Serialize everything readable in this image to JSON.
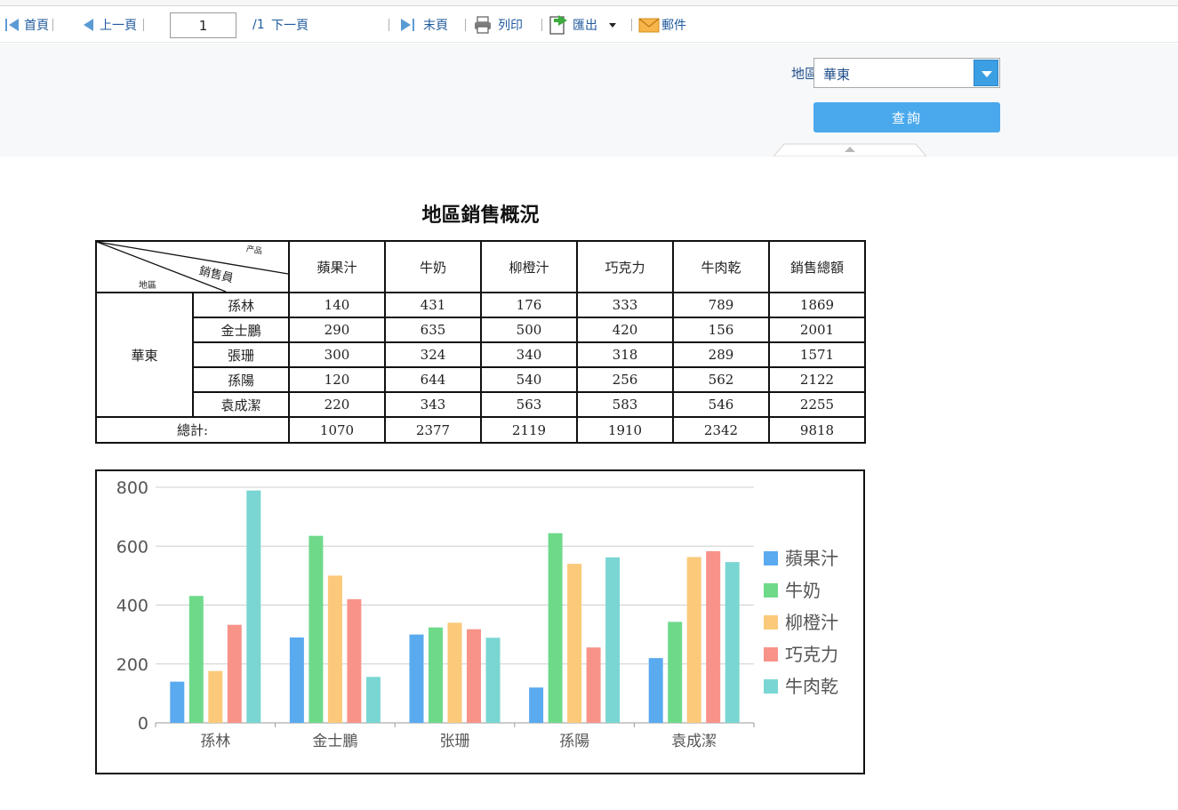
{
  "toolbar": {
    "first": "首頁",
    "prev": "上一頁",
    "page_value": "1",
    "page_total": "/1",
    "next": "下一頁",
    "last": "末頁",
    "print": "列印",
    "export": "匯出",
    "mail": "郵件"
  },
  "params": {
    "region_label": "地區:",
    "region_value": "華東",
    "query_label": "查詢"
  },
  "report": {
    "title": "地區銷售概況",
    "corner": {
      "top": "产品",
      "mid": "銷售員",
      "bottom": "地區"
    },
    "columns": [
      "蘋果汁",
      "牛奶",
      "柳橙汁",
      "巧克力",
      "牛肉乾",
      "銷售總額"
    ],
    "region": "華東",
    "rows": [
      {
        "name": "孫林",
        "values": [
          "140",
          "431",
          "176",
          "333",
          "789",
          "1869"
        ]
      },
      {
        "name": "金士鵬",
        "values": [
          "290",
          "635",
          "500",
          "420",
          "156",
          "2001"
        ]
      },
      {
        "name": "張珊",
        "values": [
          "300",
          "324",
          "340",
          "318",
          "289",
          "1571"
        ]
      },
      {
        "name": "孫陽",
        "values": [
          "120",
          "644",
          "540",
          "256",
          "562",
          "2122"
        ]
      },
      {
        "name": "袁成潔",
        "values": [
          "220",
          "343",
          "563",
          "583",
          "546",
          "2255"
        ]
      }
    ],
    "total_label": "總計:",
    "totals": [
      "1070",
      "2377",
      "2119",
      "1910",
      "2342",
      "9818"
    ]
  },
  "chart_data": {
    "type": "bar",
    "categories": [
      "孫林",
      "金士鵬",
      "张珊",
      "孫陽",
      "袁成潔"
    ],
    "series": [
      {
        "name": "蘋果汁",
        "color": "#5aaaf0",
        "values": [
          140,
          290,
          300,
          120,
          220
        ]
      },
      {
        "name": "牛奶",
        "color": "#6fd98a",
        "values": [
          431,
          635,
          324,
          644,
          343
        ]
      },
      {
        "name": "柳橙汁",
        "color": "#fbc97a",
        "values": [
          176,
          500,
          340,
          540,
          563
        ]
      },
      {
        "name": "巧克力",
        "color": "#f8938a",
        "values": [
          333,
          420,
          318,
          256,
          583
        ]
      },
      {
        "name": "牛肉乾",
        "color": "#7ad6d2",
        "values": [
          789,
          156,
          289,
          562,
          546
        ]
      }
    ],
    "ylim": [
      0,
      800
    ],
    "yticks": [
      0,
      200,
      400,
      600,
      800
    ],
    "grid": true,
    "legend": "right"
  }
}
